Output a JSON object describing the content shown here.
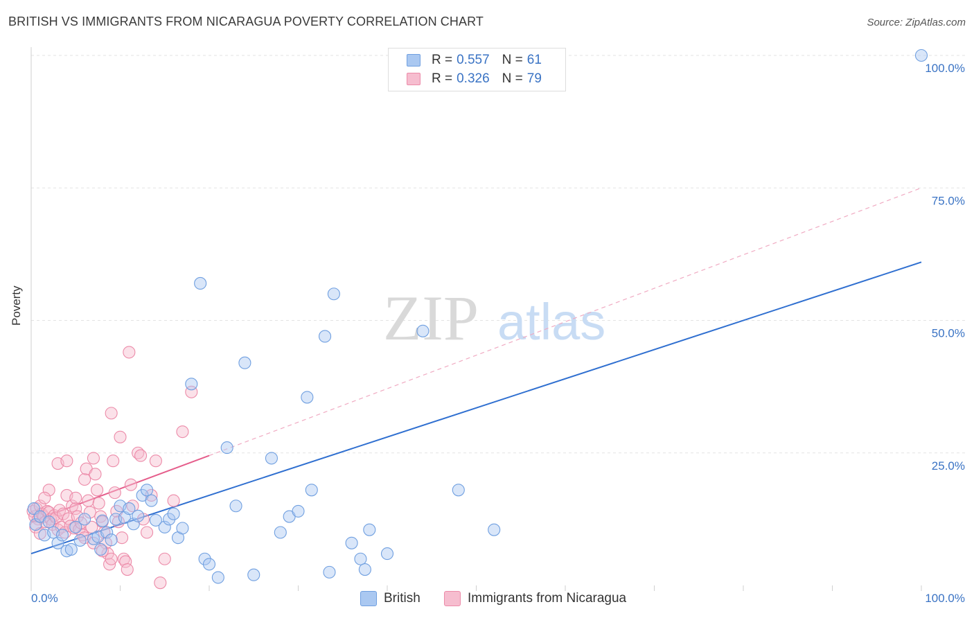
{
  "chart_data": {
    "type": "scatter",
    "title": "BRITISH VS IMMIGRANTS FROM NICARAGUA POVERTY CORRELATION CHART",
    "source": "Source: ZipAtlas.com",
    "ylabel": "Poverty",
    "xlabel": "",
    "xlim": [
      0,
      100
    ],
    "ylim": [
      0,
      100
    ],
    "x_tick_labels": [
      "0.0%",
      "100.0%"
    ],
    "y_tick_labels": [
      "25.0%",
      "50.0%",
      "75.0%",
      "100.0%"
    ],
    "y_ticks": [
      25,
      50,
      75,
      100
    ],
    "watermark": {
      "zip": "ZIP",
      "atlas": "atlas"
    },
    "colors": {
      "british": "#6f9fe0",
      "british_fill": "#aac8f1",
      "british_line": "#2f6fd0",
      "nicaragua": "#ec8aa8",
      "nicaragua_fill": "#f6bdcf",
      "nicaragua_line": "#e55d8b",
      "value_text": "#3a73c4"
    },
    "legend": {
      "rows": [
        {
          "r_label": "R = ",
          "r_value": "0.557",
          "n_label": "N = ",
          "n_value": "61"
        },
        {
          "r_label": "R = ",
          "r_value": "0.326",
          "n_label": "N = ",
          "n_value": "79"
        }
      ]
    },
    "series": [
      {
        "name": "British",
        "trend": {
          "x": [
            0,
            100
          ],
          "y": [
            6,
            61
          ]
        },
        "points": [
          [
            0.3,
            14.5
          ],
          [
            0.5,
            11.5
          ],
          [
            1.0,
            13
          ],
          [
            1.5,
            9.5
          ],
          [
            2,
            12
          ],
          [
            2.5,
            10
          ],
          [
            3,
            8
          ],
          [
            3.5,
            9.5
          ],
          [
            4,
            6.5
          ],
          [
            4.5,
            6.8
          ],
          [
            5,
            11
          ],
          [
            5.5,
            8.5
          ],
          [
            6,
            12.5
          ],
          [
            7,
            8.8
          ],
          [
            7.5,
            9.2
          ],
          [
            7.8,
            6.8
          ],
          [
            8,
            12.2
          ],
          [
            8.5,
            10
          ],
          [
            9,
            8.6
          ],
          [
            9.5,
            12.5
          ],
          [
            10,
            15
          ],
          [
            10.5,
            12.8
          ],
          [
            11,
            14.5
          ],
          [
            11.5,
            11.6
          ],
          [
            12,
            13.1
          ],
          [
            12.5,
            17
          ],
          [
            13,
            18
          ],
          [
            13.5,
            16
          ],
          [
            14,
            12.3
          ],
          [
            15,
            11
          ],
          [
            15.5,
            12.5
          ],
          [
            16,
            13.5
          ],
          [
            16.5,
            9
          ],
          [
            17,
            10.8
          ],
          [
            18,
            38
          ],
          [
            19,
            57
          ],
          [
            19.5,
            5
          ],
          [
            20,
            4
          ],
          [
            21,
            1.5
          ],
          [
            22,
            26
          ],
          [
            23,
            15
          ],
          [
            24,
            42
          ],
          [
            25,
            2
          ],
          [
            27,
            24
          ],
          [
            28,
            10
          ],
          [
            29,
            13
          ],
          [
            30,
            14
          ],
          [
            31,
            35.5
          ],
          [
            31.5,
            18
          ],
          [
            33,
            47
          ],
          [
            33.5,
            2.5
          ],
          [
            34,
            55
          ],
          [
            36,
            8
          ],
          [
            37,
            5
          ],
          [
            37.5,
            3
          ],
          [
            38,
            10.5
          ],
          [
            40,
            6
          ],
          [
            44,
            48
          ],
          [
            48,
            18
          ],
          [
            52,
            10.5
          ],
          [
            100,
            100
          ]
        ]
      },
      {
        "name": "Immigrants from Nicaragua",
        "trend": {
          "x": [
            0,
            20
          ],
          "y": [
            12,
            24.5
          ]
        },
        "trend_dashed": {
          "x": [
            20,
            100
          ],
          "y": [
            24.5,
            75
          ]
        },
        "points": [
          [
            0.2,
            14
          ],
          [
            0.4,
            13
          ],
          [
            0.6,
            14.5
          ],
          [
            0.8,
            12.5
          ],
          [
            1,
            15
          ],
          [
            1.2,
            13.5
          ],
          [
            1.4,
            13
          ],
          [
            1.6,
            12
          ],
          [
            1.8,
            14
          ],
          [
            2,
            13.8
          ],
          [
            2.2,
            12.5
          ],
          [
            2.4,
            11.5
          ],
          [
            2.6,
            13.2
          ],
          [
            2.8,
            12.8
          ],
          [
            3,
            10.5
          ],
          [
            3.2,
            14.2
          ],
          [
            3.4,
            11
          ],
          [
            3.6,
            13.5
          ],
          [
            3.8,
            10
          ],
          [
            4,
            17
          ],
          [
            4.2,
            12.6
          ],
          [
            4.4,
            11.2
          ],
          [
            4.6,
            15
          ],
          [
            4.8,
            10.8
          ],
          [
            5,
            14.5
          ],
          [
            5.2,
            13
          ],
          [
            5.4,
            10.6
          ],
          [
            5.6,
            11.8
          ],
          [
            5.8,
            9.5
          ],
          [
            6,
            20
          ],
          [
            6.2,
            22
          ],
          [
            6.4,
            16
          ],
          [
            6.6,
            13.8
          ],
          [
            6.8,
            11
          ],
          [
            7,
            24
          ],
          [
            7.2,
            21
          ],
          [
            7.4,
            18
          ],
          [
            7.6,
            15.5
          ],
          [
            7.8,
            13
          ],
          [
            8,
            12
          ],
          [
            8.2,
            10
          ],
          [
            8.4,
            8
          ],
          [
            8.6,
            6
          ],
          [
            8.8,
            4
          ],
          [
            9,
            32.5
          ],
          [
            9.2,
            23.5
          ],
          [
            9.4,
            17.5
          ],
          [
            9.6,
            14
          ],
          [
            9.8,
            12
          ],
          [
            10,
            28
          ],
          [
            10.2,
            9
          ],
          [
            10.4,
            5
          ],
          [
            10.6,
            4.5
          ],
          [
            10.8,
            3
          ],
          [
            11,
            44
          ],
          [
            11.2,
            19
          ],
          [
            11.4,
            15
          ],
          [
            12,
            25
          ],
          [
            12.3,
            24.5
          ],
          [
            12.6,
            12.5
          ],
          [
            13,
            10
          ],
          [
            13.5,
            17
          ],
          [
            14,
            23.5
          ],
          [
            14.5,
            0.5
          ],
          [
            15,
            5
          ],
          [
            16,
            16
          ],
          [
            17,
            29
          ],
          [
            18,
            36.5
          ],
          [
            2,
            18
          ],
          [
            3,
            23
          ],
          [
            1.5,
            16.5
          ],
          [
            4,
            23.5
          ],
          [
            5,
            16.5
          ],
          [
            6,
            9
          ],
          [
            7,
            8
          ],
          [
            8,
            6.5
          ],
          [
            9,
            5
          ],
          [
            0.5,
            11
          ],
          [
            1,
            9.8
          ]
        ]
      }
    ]
  }
}
